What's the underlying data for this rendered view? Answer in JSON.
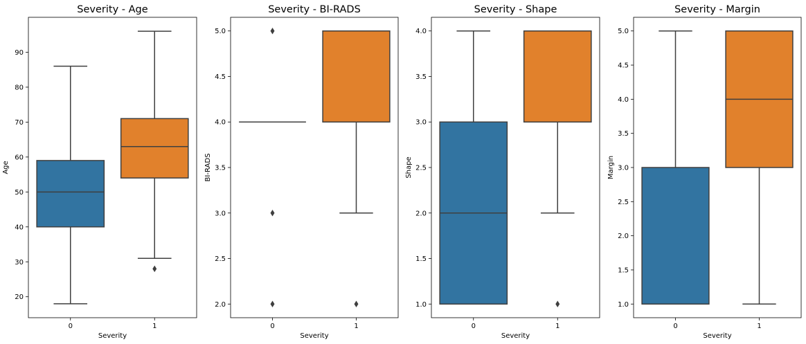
{
  "chart_data": [
    {
      "type": "box",
      "title": "Severity - Age",
      "xlabel": "Severity",
      "ylabel": "Age",
      "categories": [
        "0",
        "1"
      ],
      "colors": [
        "#3274a1",
        "#e1812c"
      ],
      "ylim": [
        14,
        100
      ],
      "yticks": [
        20,
        30,
        40,
        50,
        60,
        70,
        80,
        90
      ],
      "ytick_labels": [
        "20",
        "30",
        "40",
        "50",
        "60",
        "70",
        "80",
        "90"
      ],
      "boxes": [
        {
          "category": "0",
          "whislo": 18,
          "q1": 40,
          "med": 50,
          "q3": 59,
          "whishi": 86,
          "fliers": []
        },
        {
          "category": "1",
          "whislo": 31,
          "q1": 54,
          "med": 63,
          "q3": 71,
          "whishi": 96,
          "fliers": [
            28
          ]
        }
      ]
    },
    {
      "type": "box",
      "title": "Severity - BI-RADS",
      "xlabel": "Severity",
      "ylabel": "BI-RADS",
      "categories": [
        "0",
        "1"
      ],
      "colors": [
        "#3274a1",
        "#e1812c"
      ],
      "ylim": [
        1.85,
        5.15
      ],
      "yticks": [
        2.0,
        2.5,
        3.0,
        3.5,
        4.0,
        4.5,
        5.0
      ],
      "ytick_labels": [
        "2.0",
        "2.5",
        "3.0",
        "3.5",
        "4.0",
        "4.5",
        "5.0"
      ],
      "boxes": [
        {
          "category": "0",
          "whislo": 4,
          "q1": 4,
          "med": 4,
          "q3": 4,
          "whishi": 4,
          "fliers": [
            5,
            3,
            2
          ]
        },
        {
          "category": "1",
          "whislo": 3,
          "q1": 4,
          "med": 5,
          "q3": 5,
          "whishi": 5,
          "fliers": [
            2
          ]
        }
      ]
    },
    {
      "type": "box",
      "title": "Severity - Shape",
      "xlabel": "Severity",
      "ylabel": "Shape",
      "categories": [
        "0",
        "1"
      ],
      "colors": [
        "#3274a1",
        "#e1812c"
      ],
      "ylim": [
        0.85,
        4.15
      ],
      "yticks": [
        1.0,
        1.5,
        2.0,
        2.5,
        3.0,
        3.5,
        4.0
      ],
      "ytick_labels": [
        "1.0",
        "1.5",
        "2.0",
        "2.5",
        "3.0",
        "3.5",
        "4.0"
      ],
      "boxes": [
        {
          "category": "0",
          "whislo": 1,
          "q1": 1,
          "med": 2,
          "q3": 3,
          "whishi": 4,
          "fliers": []
        },
        {
          "category": "1",
          "whislo": 2,
          "q1": 3,
          "med": 4,
          "q3": 4,
          "whishi": 4,
          "fliers": [
            1
          ]
        }
      ]
    },
    {
      "type": "box",
      "title": "Severity - Margin",
      "xlabel": "Severity",
      "ylabel": "Margin",
      "categories": [
        "0",
        "1"
      ],
      "colors": [
        "#3274a1",
        "#e1812c"
      ],
      "ylim": [
        0.8,
        5.2
      ],
      "yticks": [
        1.0,
        1.5,
        2.0,
        2.5,
        3.0,
        3.5,
        4.0,
        4.5,
        5.0
      ],
      "ytick_labels": [
        "1.0",
        "1.5",
        "2.0",
        "2.5",
        "3.0",
        "3.5",
        "4.0",
        "4.5",
        "5.0"
      ],
      "boxes": [
        {
          "category": "0",
          "whislo": 1,
          "q1": 1,
          "med": 1,
          "q3": 3,
          "whishi": 5,
          "fliers": []
        },
        {
          "category": "1",
          "whislo": 1,
          "q1": 3,
          "med": 4,
          "q3": 5,
          "whishi": 5,
          "fliers": []
        }
      ]
    }
  ]
}
